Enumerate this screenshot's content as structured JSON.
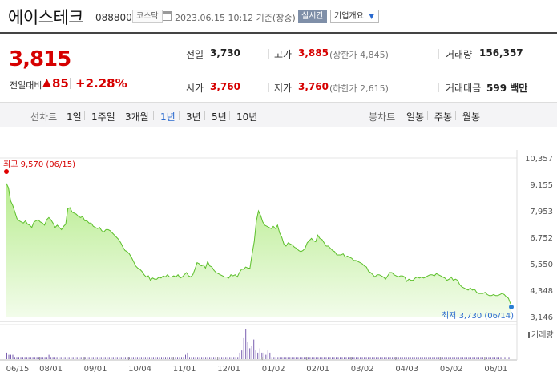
{
  "header": {
    "name": "에이스테크",
    "code": "088800",
    "market": "코스닥",
    "timestamp": "2023.06.15 10:12 기준(장중)",
    "realtime": "실시간",
    "company_info": "기업개요"
  },
  "summary": {
    "price": "3,815",
    "change_label": "전일대비",
    "change_value": "85",
    "change_pct": "+2.28%",
    "prev_close_label": "전일",
    "prev_close": "3,730",
    "high_label": "고가",
    "high": "3,885",
    "upper_limit": "(상한가 4,845)",
    "volume_label": "거래량",
    "volume": "156,357",
    "open_label": "시가",
    "open": "3,760",
    "low_label": "저가",
    "low": "3,760",
    "lower_limit": "(하한가 2,615)",
    "amount_label": "거래대금",
    "amount": "599 백만"
  },
  "periods": {
    "line_label": "선차트",
    "line_items": [
      "1일",
      "1주일",
      "3개월",
      "1년",
      "3년",
      "5년",
      "10년"
    ],
    "active": "1년",
    "candle_label": "봉차트",
    "candle_items": [
      "일봉",
      "주봉",
      "월봉"
    ]
  },
  "chart_data": {
    "type": "area",
    "ylim": [
      3146,
      10357
    ],
    "y_ticks": [
      "10,357",
      "9,155",
      "7,953",
      "6,752",
      "5,550",
      "4,348",
      "3,146"
    ],
    "x_ticks": [
      "06/15",
      "08/01",
      "09/01",
      "10/04",
      "11/01",
      "12/01",
      "01/02",
      "02/01",
      "03/02",
      "04/03",
      "05/02",
      "06/01"
    ],
    "high_annotation": "최고 9,570 (06/15)",
    "low_annotation": "최저 3,730 (06/14)",
    "volume_label": "거래량",
    "series": [
      {
        "values": [
          9200,
          9000,
          8400,
          8200,
          7900,
          7600,
          7500,
          7450,
          7400,
          7500,
          7350,
          7300,
          7200,
          7450,
          7500,
          7550,
          7450,
          7400,
          7300,
          7550,
          7650,
          7550,
          7400,
          7200,
          7300,
          7200,
          7100,
          7250,
          7350,
          8050,
          8100,
          7900,
          7850,
          7800,
          7700,
          7650,
          7700,
          7500,
          7500,
          7400,
          7400,
          7250,
          7200,
          7150,
          7200,
          7050,
          7000,
          7100,
          7100,
          7050,
          6950,
          6850,
          6750,
          6650,
          6500,
          6300,
          6150,
          6100,
          6000,
          5850,
          5650,
          5450,
          5350,
          5300,
          5200,
          5050,
          4950,
          5000,
          4800,
          4900,
          4850,
          4850,
          4950,
          4900,
          5000,
          4950,
          5050,
          4950,
          4950,
          5000,
          4950,
          5050,
          4900,
          4950,
          5050,
          5150,
          5000,
          4950,
          5050,
          5300,
          5600,
          5550,
          5450,
          5500,
          5350,
          5650,
          5450,
          5400,
          5250,
          5150,
          5100,
          5050,
          5000,
          4950,
          4950,
          4900,
          5050,
          5000,
          5050,
          4950,
          5150,
          5300,
          5300,
          5400,
          5350,
          5350,
          6000,
          6550,
          7500,
          7950,
          7750,
          7450,
          7300,
          7250,
          7200,
          7150,
          7250,
          7150,
          7300,
          6950,
          6750,
          6450,
          6350,
          6500,
          6450,
          6400,
          6300,
          6250,
          6150,
          6100,
          6150,
          6250,
          6500,
          6600,
          6700,
          6600,
          6550,
          6850,
          6700,
          6650,
          6500,
          6350,
          6350,
          6250,
          6150,
          6100,
          5950,
          5950,
          5950,
          6000,
          5850,
          5900,
          5850,
          5800,
          5700,
          5700,
          5650,
          5600,
          5550,
          5450,
          5400,
          5200,
          5150,
          5050,
          4950,
          5050,
          5050,
          5000,
          4950,
          4850,
          5000,
          5150,
          5150,
          5050,
          5000,
          4950,
          5000,
          5000,
          4950,
          4750,
          4850,
          4800,
          4800,
          4900,
          4950,
          4900,
          4950,
          4900,
          4950,
          5000,
          5050,
          5050,
          5000,
          5100,
          5050,
          5000,
          4950,
          4900,
          4800,
          4850,
          4950,
          4800,
          4850,
          4800,
          4600,
          4500,
          4450,
          4400,
          4350,
          4450,
          4350,
          4400,
          4250,
          4200,
          4200,
          4200,
          4250,
          4150,
          4100,
          4100,
          4150,
          4100,
          4100,
          4150,
          4200,
          4150,
          4050,
          3980,
          3730
        ]
      }
    ]
  },
  "volume_data": [
    3,
    2,
    2,
    2,
    1,
    1,
    1,
    1,
    1,
    1,
    1,
    1,
    1,
    1,
    1,
    1,
    1,
    1,
    1,
    1,
    1,
    2,
    1,
    1,
    1,
    1,
    1,
    1,
    1,
    1,
    1,
    1,
    1,
    1,
    1,
    1,
    1,
    1,
    1,
    1,
    1,
    1,
    1,
    1,
    1,
    1,
    1,
    1,
    1,
    1,
    1,
    1,
    1,
    1,
    1,
    1,
    1,
    1,
    1,
    1,
    1,
    1,
    1,
    1,
    1,
    1,
    1,
    1,
    1,
    1,
    1,
    1,
    1,
    1,
    1,
    1,
    1,
    1,
    1,
    1,
    1,
    1,
    1,
    1,
    1,
    1,
    1,
    1,
    1,
    2,
    3,
    1,
    1,
    1,
    1,
    1,
    1,
    1,
    1,
    1,
    1,
    1,
    1,
    1,
    1,
    1,
    1,
    1,
    1,
    1,
    1,
    1,
    1,
    1,
    1,
    1,
    3,
    4,
    10,
    14,
    8,
    5,
    6,
    9,
    4,
    3,
    5,
    3,
    3,
    2,
    4,
    3,
    1,
    1,
    1,
    1,
    1,
    1,
    1,
    1,
    1,
    1,
    1,
    1,
    1,
    1,
    1,
    1,
    1,
    1,
    1,
    1,
    1,
    1,
    1,
    1,
    1,
    1,
    1,
    1,
    1,
    1,
    1,
    1,
    1,
    1,
    1,
    1,
    1,
    1,
    1,
    1,
    1,
    1,
    1,
    1,
    1,
    1,
    1,
    1,
    1,
    1,
    1,
    1,
    1,
    1,
    1,
    1,
    1,
    1,
    1,
    1,
    1,
    1,
    1,
    1,
    1,
    1,
    1,
    1,
    1,
    1,
    1,
    1,
    1,
    1,
    1,
    1,
    1,
    1,
    1,
    1,
    1,
    1,
    1,
    1,
    1,
    1,
    1,
    1,
    1,
    1,
    1,
    1,
    1,
    1,
    1,
    1,
    1,
    1,
    1,
    1,
    1,
    1,
    1,
    1,
    1,
    1,
    1,
    1,
    1,
    1,
    1,
    1,
    1,
    1,
    1,
    2,
    1,
    2,
    1,
    2
  ]
}
